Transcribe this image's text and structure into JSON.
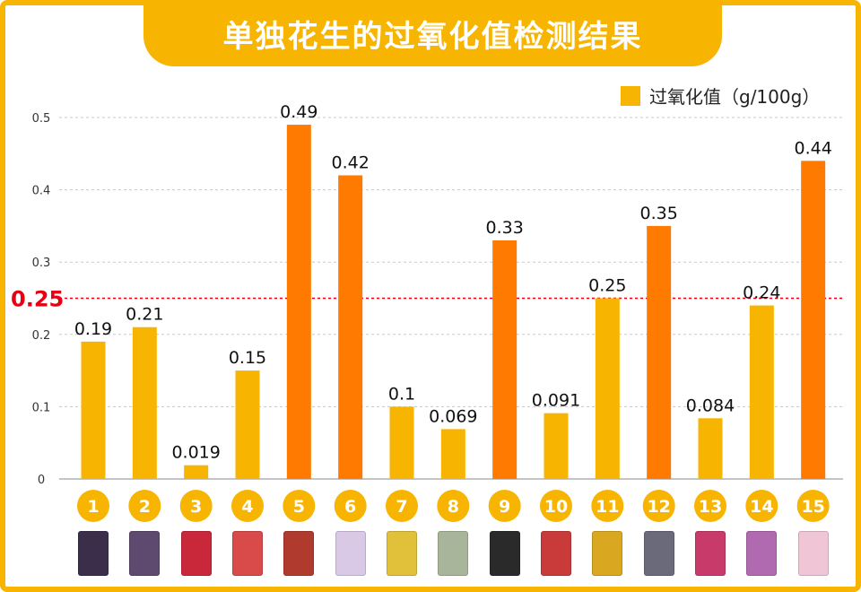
{
  "title": "单独花生的过氧化值检测结果",
  "legend_label": "过氧化值（g/100g）",
  "threshold_label": "0.25",
  "colors": {
    "accent": "#f7b400",
    "above": "#ff7a00",
    "threshold": "#e60012"
  },
  "chart_data": {
    "type": "bar",
    "categories": [
      "1",
      "2",
      "3",
      "4",
      "5",
      "6",
      "7",
      "8",
      "9",
      "10",
      "11",
      "12",
      "13",
      "14",
      "15"
    ],
    "series": [
      {
        "name": "过氧化值（g/100g）",
        "values": [
          0.19,
          0.21,
          0.019,
          0.15,
          0.49,
          0.42,
          0.1,
          0.069,
          0.33,
          0.091,
          0.25,
          0.35,
          0.084,
          0.24,
          0.44
        ]
      }
    ],
    "data_labels": [
      "0.19",
      "0.21",
      "0.019",
      "0.15",
      "0.49",
      "0.42",
      "0.1",
      "0.069",
      "0.33",
      "0.091",
      "0.25",
      "0.35",
      "0.084",
      "0.24",
      "0.44"
    ],
    "yticks": [
      "0",
      "0.1",
      "0.2",
      "0.3",
      "0.4",
      "0.5"
    ],
    "ylim": [
      0,
      0.5
    ],
    "threshold": 0.25,
    "grid": true,
    "legend": "top-right",
    "xlabel": "",
    "ylabel": ""
  },
  "product_colors": [
    "#3b2e4a",
    "#5d4a6e",
    "#c8283a",
    "#d94a4a",
    "#b03a2e",
    "#d9c9e6",
    "#e2c13a",
    "#a9b59a",
    "#2a2a2a",
    "#c93a3a",
    "#d9a820",
    "#6a6a7a",
    "#c83a6a",
    "#b06ab0",
    "#f0c6d6"
  ]
}
